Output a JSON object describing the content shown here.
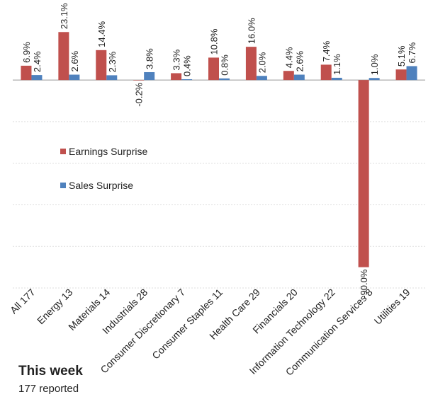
{
  "chart_data": {
    "type": "bar",
    "categories": [
      "All 177",
      "Energy 13",
      "Materials 14",
      "Industrials 28",
      "Consumer Discretionary 7",
      "Consumer Staples 11",
      "Health Care 29",
      "Financials 20",
      "Information Technology 22",
      "Communication Services 8",
      "Utilities 19"
    ],
    "series": [
      {
        "name": "Earnings Surprise",
        "color": "#c0504d",
        "values": [
          6.9,
          23.1,
          14.4,
          -0.2,
          3.3,
          10.8,
          16.0,
          4.4,
          7.4,
          -90.0,
          5.1
        ],
        "value_labels": [
          "6.9%",
          "23.1%",
          "14.4%",
          "-0.2%",
          "3.3%",
          "10.8%",
          "16.0%",
          "4.4%",
          "7.4%",
          "-90.0%",
          "5.1%"
        ]
      },
      {
        "name": "Sales Surprise",
        "color": "#4f81bd",
        "values": [
          2.4,
          2.6,
          2.3,
          3.8,
          0.4,
          0.8,
          2.0,
          2.6,
          1.1,
          1.0,
          6.7
        ],
        "value_labels": [
          "2.4%",
          "2.6%",
          "2.3%",
          "3.8%",
          "0.4%",
          "0.8%",
          "2.0%",
          "2.6%",
          "1.1%",
          "1.0%",
          "6.7%"
        ]
      }
    ],
    "ylim": [
      -100,
      30
    ],
    "yticks": [
      -100,
      -80,
      -60,
      -40,
      -20,
      0
    ],
    "grid": true,
    "footer": {
      "title": "This week",
      "subtitle": "177 reported"
    }
  }
}
